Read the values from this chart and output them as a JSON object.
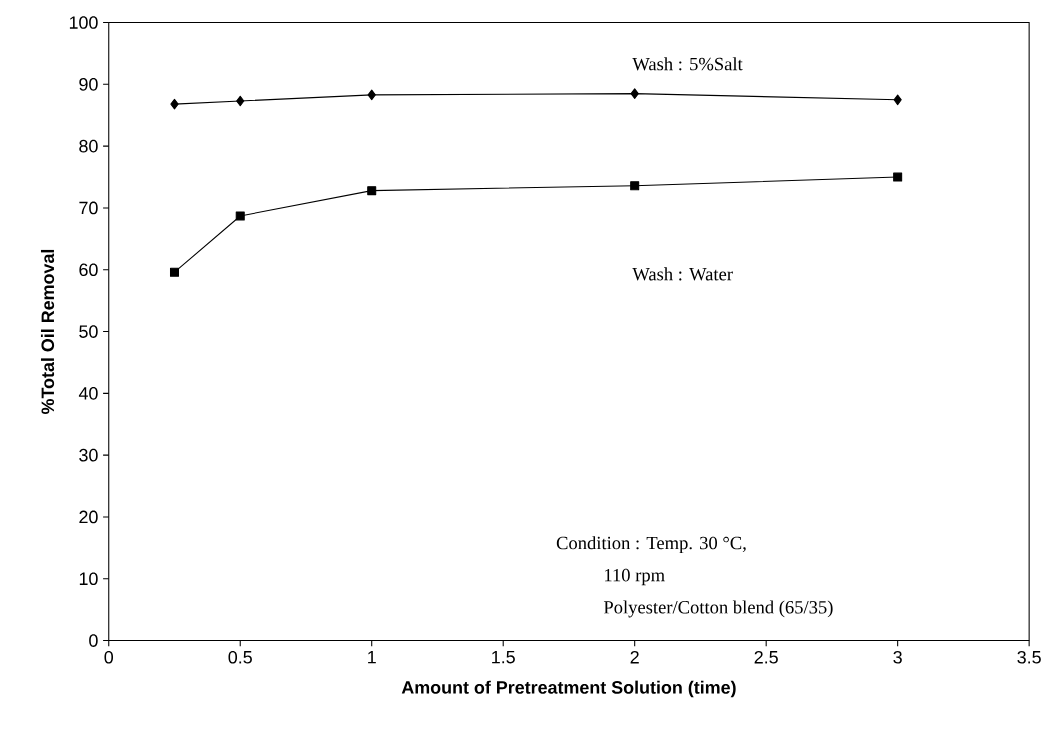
{
  "chart_data": {
    "type": "line",
    "xlabel": "Amount of Pretreatment Solution (time)",
    "ylabel": "%Total Oil Removal",
    "xlim": [
      0,
      3.5
    ],
    "xticks": [
      0,
      0.5,
      1,
      1.5,
      2,
      2.5,
      3,
      3.5
    ],
    "ylim": [
      0,
      100
    ],
    "yticks": [
      0,
      10,
      20,
      30,
      40,
      50,
      60,
      70,
      80,
      90,
      100
    ],
    "grid": false,
    "line_style": "solid",
    "series": [
      {
        "color": "#000000",
        "marker": "diamond",
        "x": [
          0.25,
          0.5,
          1,
          2,
          3
        ],
        "values": [
          86.8,
          87.3,
          88.3,
          88.5,
          87.5
        ]
      },
      {
        "color": "#000000",
        "marker": "square",
        "x": [
          0.25,
          0.5,
          1,
          2,
          3
        ],
        "values": [
          59.6,
          68.7,
          72.8,
          73.6,
          75.0
        ]
      }
    ],
    "annotations": [
      "Wash : 5%Salt",
      "Wash : Water",
      "Condition : Temp. 30 °C,",
      "110 rpm",
      "Polyester/Cotton blend (65/35)"
    ]
  }
}
